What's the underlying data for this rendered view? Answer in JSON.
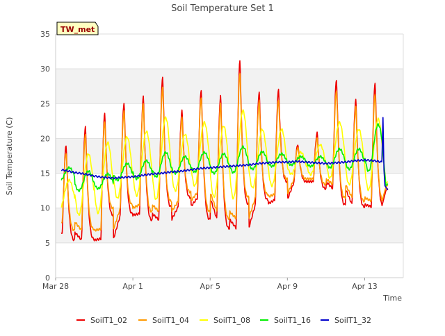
{
  "chart_data": {
    "type": "line",
    "title": "Soil Temperature Set 1",
    "xlabel": "Time",
    "ylabel": "Soil Temperature (C)",
    "ylim": [
      0,
      35
    ],
    "xlim_days": [
      0,
      18
    ],
    "yticks": [
      0,
      5,
      10,
      15,
      20,
      25,
      30,
      35
    ],
    "xticks": [
      {
        "day": 0,
        "label": "Mar 28"
      },
      {
        "day": 4,
        "label": "Apr 1"
      },
      {
        "day": 8,
        "label": "Apr 5"
      },
      {
        "day": 12,
        "label": "Apr 9"
      },
      {
        "day": 16,
        "label": "Apr 13"
      }
    ],
    "grid": "horizontal alternating bands",
    "legend_position": "bottom",
    "site_badge": "TW_met",
    "series": [
      {
        "name": "SoilT1_02",
        "color": "#ee0000",
        "daily_max": [
          19.0,
          21.8,
          23.6,
          25.2,
          26.0,
          29.0,
          24.0,
          27.0,
          26.2,
          31.2,
          26.8,
          27.0,
          19.2,
          20.8,
          28.5,
          25.6,
          28.0
        ],
        "daily_min": [
          6.5,
          5.4,
          5.6,
          9.0,
          9.2,
          8.3,
          10.2,
          11.5,
          8.4,
          7.1,
          10.6,
          11.2,
          13.8,
          13.8,
          12.8,
          10.5,
          10.2
        ]
      },
      {
        "name": "SoilT1_04",
        "color": "#ff9900",
        "daily_max": [
          18.0,
          20.5,
          22.5,
          24.0,
          25.0,
          27.5,
          23.0,
          26.0,
          25.0,
          29.5,
          25.5,
          25.5,
          18.8,
          20.0,
          27.0,
          24.5,
          26.5
        ],
        "daily_min": [
          8.0,
          6.8,
          7.0,
          10.0,
          10.5,
          9.5,
          11.0,
          12.3,
          9.5,
          8.5,
          11.6,
          12.0,
          14.2,
          14.2,
          13.4,
          11.5,
          11.0
        ]
      },
      {
        "name": "SoilT1_08",
        "color": "#ffff00",
        "daily_max": [
          14.0,
          17.8,
          19.4,
          20.2,
          21.0,
          23.0,
          20.6,
          22.3,
          21.8,
          24.0,
          21.3,
          21.3,
          18.0,
          19.1,
          22.3,
          21.3,
          22.8
        ],
        "daily_min": [
          9.8,
          9.0,
          9.3,
          11.4,
          11.8,
          11.2,
          12.5,
          13.2,
          11.6,
          11.4,
          12.9,
          13.2,
          14.9,
          14.8,
          14.3,
          13.4,
          12.6
        ]
      },
      {
        "name": "SoilT1_16",
        "color": "#00ee00",
        "daily_max": [
          15.8,
          15.3,
          14.9,
          16.4,
          16.8,
          18.0,
          17.4,
          18.0,
          17.8,
          18.8,
          18.1,
          17.8,
          17.4,
          17.4,
          18.5,
          18.5,
          22.0
        ],
        "daily_min": [
          13.8,
          12.5,
          12.8,
          14.0,
          14.2,
          14.5,
          15.0,
          15.2,
          15.0,
          15.1,
          15.6,
          16.0,
          16.2,
          16.0,
          15.8,
          15.6,
          15.3
        ]
      },
      {
        "name": "SoilT1_32",
        "color": "#0000cc",
        "trend": [
          [
            0.0,
            15.6
          ],
          [
            0.5,
            15.4
          ],
          [
            1.0,
            15.1
          ],
          [
            1.5,
            14.9
          ],
          [
            2.0,
            14.6
          ],
          [
            2.5,
            14.4
          ],
          [
            3.0,
            14.3
          ],
          [
            3.5,
            14.4
          ],
          [
            4.0,
            14.5
          ],
          [
            4.5,
            14.7
          ],
          [
            5.0,
            14.9
          ],
          [
            5.5,
            15.0
          ],
          [
            6.0,
            15.2
          ],
          [
            6.5,
            15.3
          ],
          [
            7.0,
            15.5
          ],
          [
            7.5,
            15.7
          ],
          [
            8.0,
            15.8
          ],
          [
            8.5,
            15.9
          ],
          [
            9.0,
            16.0
          ],
          [
            9.5,
            16.1
          ],
          [
            10.0,
            16.2
          ],
          [
            10.5,
            16.4
          ],
          [
            11.0,
            16.5
          ],
          [
            11.5,
            16.6
          ],
          [
            12.0,
            16.6
          ],
          [
            12.5,
            16.7
          ],
          [
            13.0,
            16.6
          ],
          [
            13.5,
            16.5
          ],
          [
            14.0,
            16.4
          ],
          [
            14.5,
            16.5
          ],
          [
            15.0,
            16.6
          ],
          [
            15.5,
            16.8
          ],
          [
            16.0,
            16.9
          ],
          [
            16.5,
            16.8
          ],
          [
            16.9,
            16.6
          ]
        ],
        "end_spike": 23.0,
        "end_value": 12.6
      }
    ],
    "end_drop_values": {
      "SoilT1_02": 12.5,
      "SoilT1_04": 13.0,
      "SoilT1_08": 13.5,
      "SoilT1_16": 13.2
    }
  }
}
